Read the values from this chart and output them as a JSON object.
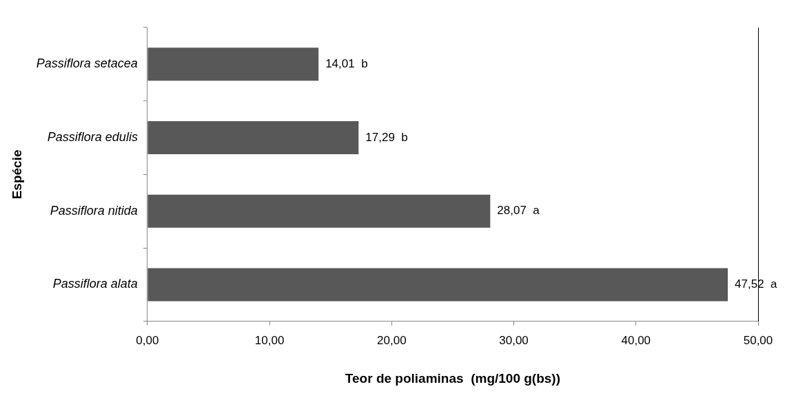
{
  "chart_data": {
    "type": "bar",
    "orientation": "horizontal",
    "xlabel": "Teor de poliaminas  (mg/100 g(bs))",
    "ylabel": "Espécie",
    "categories": [
      "Passiflora setacea",
      "Passiflora edulis",
      "Passiflora nitida",
      "Passiflora alata"
    ],
    "values": [
      14.01,
      17.29,
      28.07,
      47.52
    ],
    "color": "#585858",
    "value_labels": [
      "14,01  b",
      "17,29  b",
      "28,07  a",
      "47,52  a"
    ],
    "xlim": [
      0,
      50
    ],
    "xticks": [
      {
        "value": 0,
        "label": "0,00"
      },
      {
        "value": 10,
        "label": "10,00"
      },
      {
        "value": 20,
        "label": "20,00"
      },
      {
        "value": 30,
        "label": "30,00"
      },
      {
        "value": 40,
        "label": "40,00"
      },
      {
        "value": 50,
        "label": "50,00"
      }
    ],
    "grid": false,
    "legend": false
  }
}
